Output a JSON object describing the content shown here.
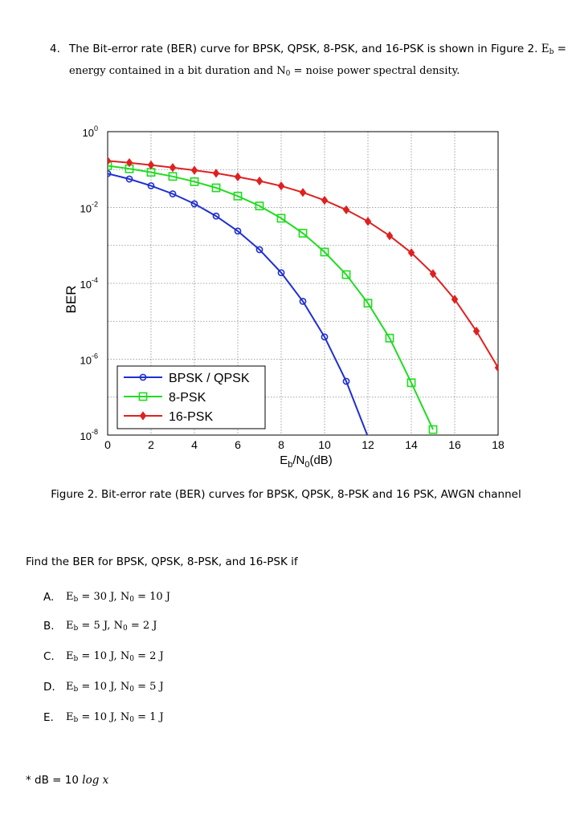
{
  "question": {
    "number": "4.",
    "line1": "The Bit-error rate (BER) curve for BPSK, QPSK, 8-PSK, and 16-PSK is shown in Figure 2.",
    "line1_tail": "E",
    "line1_tail_sub": "b",
    "line1_tail_eq": " =",
    "line2_a": "energy contained in a bit duration  and  N",
    "line2_sub": "0",
    "line2_b": " = noise power spectral density."
  },
  "chart_data": {
    "type": "line",
    "xlabel_main": "E",
    "xlabel_sub1": "b",
    "xlabel_mid": "/N",
    "xlabel_sub2": "0",
    "xlabel_tail": "(dB)",
    "ylabel": "BER",
    "xlim": [
      0,
      18
    ],
    "ylim_log10": [
      -8,
      0
    ],
    "y_scale": "log",
    "grid": true,
    "x_ticks": [
      "0",
      "2",
      "4",
      "6",
      "8",
      "10",
      "12",
      "14",
      "16",
      "18"
    ],
    "y_ticks": [
      {
        "base": "10",
        "exp": "0",
        "value": 0
      },
      {
        "base": "10",
        "exp": "-2",
        "value": -2
      },
      {
        "base": "10",
        "exp": "-4",
        "value": -4
      },
      {
        "base": "10",
        "exp": "-6",
        "value": -6
      },
      {
        "base": "10",
        "exp": "-8",
        "value": -8
      }
    ],
    "legend_position": "bottom-left",
    "series": [
      {
        "name": "BPSK / QPSK",
        "color": "#1f2fd0",
        "marker": "circle",
        "x": [
          0,
          1,
          2,
          3,
          4,
          5,
          6,
          7,
          8,
          9,
          10,
          11,
          12
        ],
        "y": [
          0.0786,
          0.0563,
          0.0375,
          0.0229,
          0.0125,
          0.00595,
          0.00239,
          0.000773,
          0.000191,
          3.36e-05,
          3.87e-06,
          2.62e-07,
          9e-09
        ]
      },
      {
        "name": "8-PSK",
        "color": "#1fdc1f",
        "marker": "square",
        "x": [
          0,
          1,
          2,
          3,
          4,
          5,
          6,
          7,
          8,
          9,
          10,
          11,
          12,
          13,
          14,
          15
        ],
        "y": [
          0.126,
          0.105,
          0.085,
          0.066,
          0.048,
          0.033,
          0.02,
          0.011,
          0.0052,
          0.0021,
          0.00067,
          0.00017,
          3e-05,
          3.6e-06,
          2.4e-07,
          1.4e-08
        ]
      },
      {
        "name": "16-PSK",
        "color": "#e02020",
        "marker": "diamond",
        "x": [
          0,
          1,
          2,
          3,
          4,
          5,
          6,
          7,
          8,
          9,
          10,
          11,
          12,
          13,
          14,
          15,
          16,
          17,
          18
        ],
        "y": [
          0.17,
          0.152,
          0.132,
          0.113,
          0.096,
          0.08,
          0.064,
          0.05,
          0.037,
          0.025,
          0.0155,
          0.0087,
          0.0043,
          0.0018,
          0.00064,
          0.00018,
          3.8e-05,
          5.5e-06,
          6e-07
        ]
      }
    ]
  },
  "caption": "Figure 2. Bit-error rate (BER) curves for BPSK, QPSK, 8-PSK and 16 PSK, AWGN channel",
  "find": "Find  the  BER for BPSK, QPSK, 8-PSK, and 16-PSK if",
  "options": [
    {
      "label": "A.",
      "eb": "30 J,",
      "n0": "10 J"
    },
    {
      "label": "B.",
      "eb": "5  J,",
      "n0": "2  J"
    },
    {
      "label": "C.",
      "eb": "10  J,",
      "n0": "2  J"
    },
    {
      "label": "D.",
      "eb": "10  J,",
      "n0": "5  J"
    },
    {
      "label": "E.",
      "eb": "10  J,",
      "n0": "1  J"
    }
  ],
  "symbols": {
    "E": "E",
    "b": "b",
    "N": "N",
    "zero": "0",
    "eq": " = "
  },
  "note": {
    "prefix": "* dB  =  10 ",
    "log": "log",
    "var": "x"
  }
}
